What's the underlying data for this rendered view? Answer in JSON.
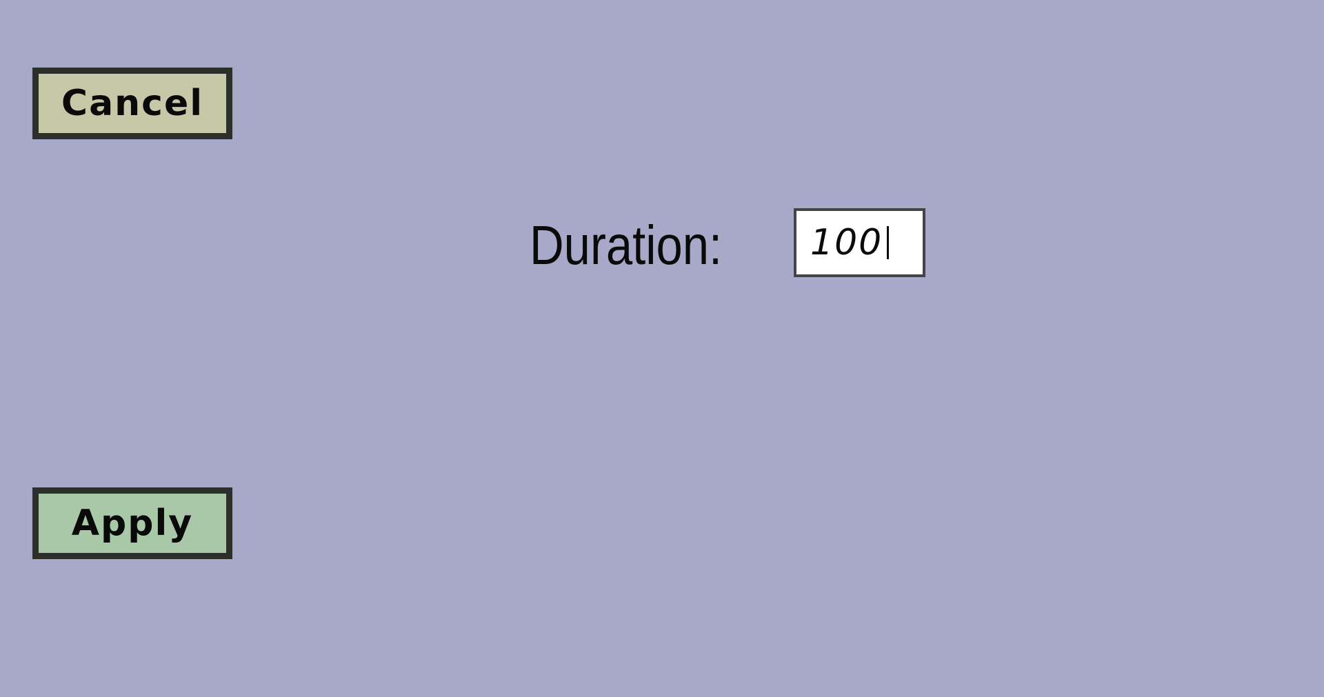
{
  "buttons": {
    "cancel_label": "Cancel",
    "apply_label": "Apply"
  },
  "duration": {
    "label": "Duration:",
    "value": "100"
  },
  "colors": {
    "background": "#a8a8c8",
    "cancel_button": "#c7c8a8",
    "apply_button": "#a8c8a8",
    "button_border": "#2c2f2a"
  }
}
